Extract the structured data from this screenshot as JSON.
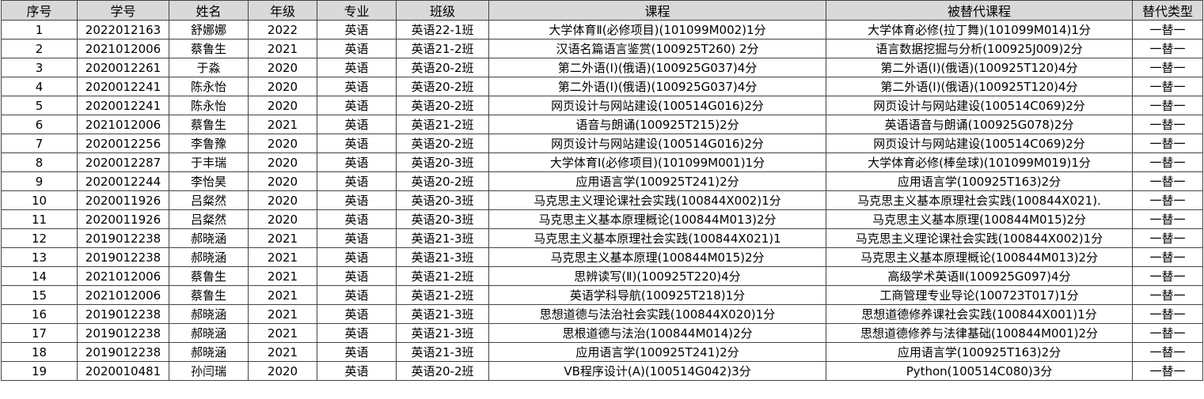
{
  "table": {
    "header": [
      "序号",
      "学号",
      "姓名",
      "年级",
      "专业",
      "班级",
      "课程",
      "被替代课程",
      "替代类型"
    ],
    "rows": [
      [
        "1",
        "2022012163",
        "舒娜娜",
        "2022",
        "英语",
        "英语22-1班",
        "大学体育Ⅱ(必修项目)(101099M002)1分",
        "大学体育必修(拉丁舞)(101099M014)1分",
        "一替一"
      ],
      [
        "2",
        "2021012006",
        "蔡鲁生",
        "2021",
        "英语",
        "英语21-2班",
        "汉语名篇语言鉴赏(100925T260) 2分",
        "语言数据挖掘与分析(100925J009)2分",
        "一替一"
      ],
      [
        "3",
        "2020012261",
        "于淼",
        "2020",
        "英语",
        "英语20-2班",
        "第二外语(I)(俄语)(100925G037)4分",
        "第二外语(I)(俄语)(100925T120)4分",
        "一替一"
      ],
      [
        "4",
        "2020012241",
        "陈永怡",
        "2020",
        "英语",
        "英语20-2班",
        "第二外语(I)(俄语)(100925G037)4分",
        "第二外语(I)(俄语)(100925T120)4分",
        "一替一"
      ],
      [
        "5",
        "2020012241",
        "陈永怡",
        "2020",
        "英语",
        "英语20-2班",
        "网页设计与网站建设(100514G016)2分",
        "网页设计与网站建设(100514C069)2分",
        "一替一"
      ],
      [
        "6",
        "2021012006",
        "蔡鲁生",
        "2021",
        "英语",
        "英语21-2班",
        "语音与朗诵(100925T215)2分",
        "英语语音与朗诵(100925G078)2分",
        "一替一"
      ],
      [
        "7",
        "2020012256",
        "李鲁豫",
        "2020",
        "英语",
        "英语20-2班",
        "网页设计与网站建设(100514G016)2分",
        "网页设计与网站建设(100514C069)2分",
        "一替一"
      ],
      [
        "8",
        "2020012287",
        "于丰瑞",
        "2020",
        "英语",
        "英语20-3班",
        "大学体育I(必修项目)(101099M001)1分",
        "大学体育必修(棒垒球)(101099M019)1分",
        "一替一"
      ],
      [
        "9",
        "2020012244",
        "李怡昊",
        "2020",
        "英语",
        "英语20-2班",
        "应用语言学(100925T241)2分",
        "应用语言学(100925T163)2分",
        "一替一"
      ],
      [
        "10",
        "2020011926",
        "吕粲然",
        "2020",
        "英语",
        "英语20-3班",
        "马克思主义理论课社会实践(100844X002)1分",
        "马克思主义基本原理社会实践(100844X021).",
        "一替一"
      ],
      [
        "11",
        "2020011926",
        "吕粲然",
        "2020",
        "英语",
        "英语20-3班",
        "马克思主义基本原理概论(100844M013)2分",
        "马克思主义基本原理(100844M015)2分",
        "一替一"
      ],
      [
        "12",
        "2019012238",
        "郝晓涵",
        "2021",
        "英语",
        "英语21-3班",
        "马克思主义基本原理社会实践(100844X021)1",
        "马克思主义理论课社会实践(100844X002)1分",
        "一替一"
      ],
      [
        "13",
        "2019012238",
        "郝晓涵",
        "2021",
        "英语",
        "英语21-3班",
        "马克思主义基本原理(100844M015)2分",
        "马克思主义基本原理概论(100844M013)2分",
        "一替一"
      ],
      [
        "14",
        "2021012006",
        "蔡鲁生",
        "2021",
        "英语",
        "英语21-2班",
        "思辨读写(Ⅱ)(100925T220)4分",
        "高级学术英语Ⅱ(100925G097)4分",
        "一替一"
      ],
      [
        "15",
        "2021012006",
        "蔡鲁生",
        "2021",
        "英语",
        "英语21-2班",
        "英语学科导航(100925T218)1分",
        "工商管理专业导论(100723T017)1分",
        "一替一"
      ],
      [
        "16",
        "2019012238",
        "郝晓涵",
        "2021",
        "英语",
        "英语21-3班",
        "思想道德与法治社会实践(100844X020)1分",
        "思想道德修养课社会实践(100844X001)1分",
        "一替一"
      ],
      [
        "17",
        "2019012238",
        "郝晓涵",
        "2021",
        "英语",
        "英语21-3班",
        "思根道德与法治(100844M014)2分",
        "思想道德修养与法律基础(100844M001)2分",
        "一替一"
      ],
      [
        "18",
        "2019012238",
        "郝晓涵",
        "2021",
        "英语",
        "英语21-3班",
        "应用语言学(100925T241)2分",
        "应用语言学(100925T163)2分",
        "一替一"
      ],
      [
        "19",
        "2020010481",
        "孙闫瑞",
        "2020",
        "英语",
        "英语20-2班",
        "VB程序设计(A)(100514G042)3分",
        "Python(100514C080)3分",
        "一替一"
      ]
    ]
  }
}
